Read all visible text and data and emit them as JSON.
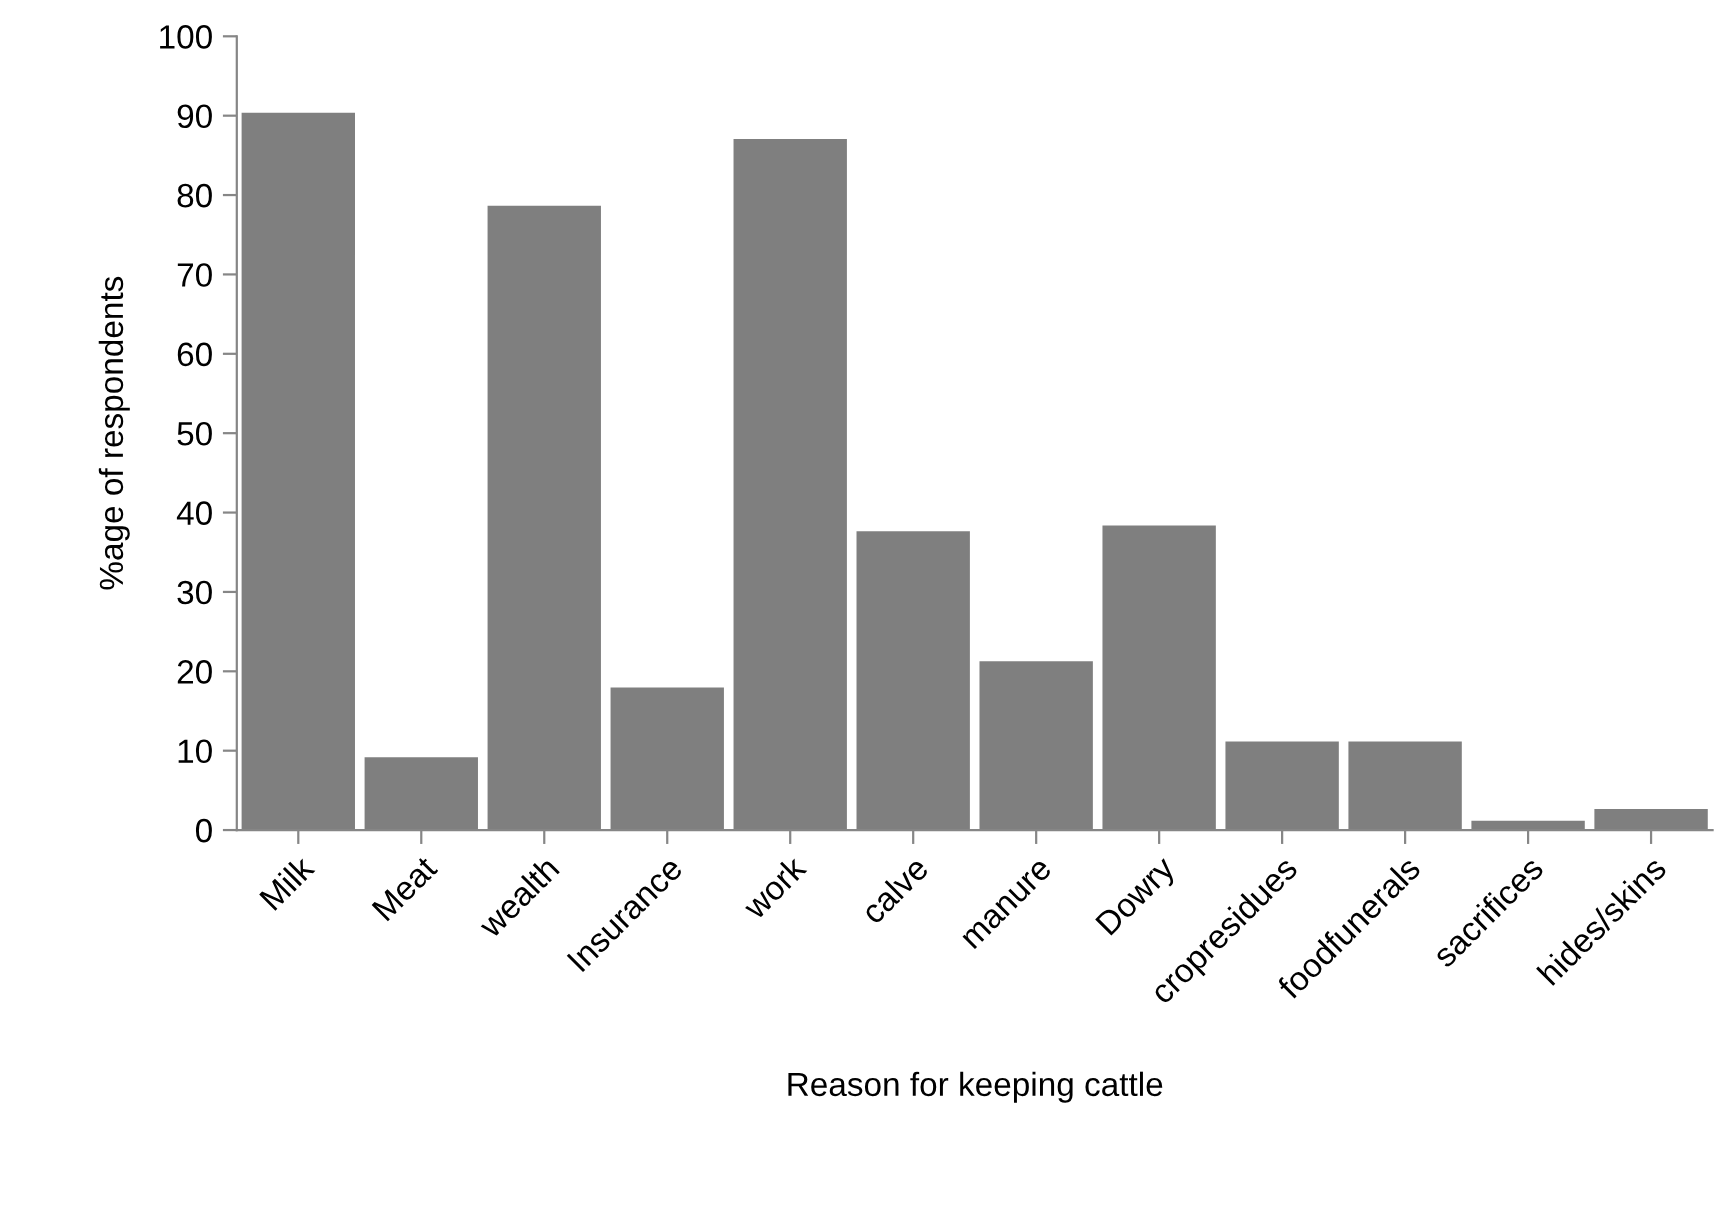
{
  "chart_data": {
    "type": "bar",
    "xlabel": "Reason for keeping cattle",
    "ylabel": "%age of respondents",
    "categories": [
      "Milk",
      "Meat",
      "wealth",
      "Insurance",
      "work",
      "calve",
      "manure",
      "Dowry",
      "cropresidues",
      "foodfunerals",
      "sacrifices",
      "hides/skins"
    ],
    "values": [
      90.5,
      9.3,
      78.8,
      18.1,
      87.2,
      37.8,
      21.4,
      38.5,
      11.3,
      11.3,
      1.3,
      2.8
    ],
    "color": "#7f7f7f",
    "ylim": [
      0,
      100
    ],
    "yticks": [
      0,
      10,
      20,
      30,
      40,
      50,
      60,
      70,
      80,
      90,
      100
    ],
    "grid": false,
    "legend": false
  }
}
